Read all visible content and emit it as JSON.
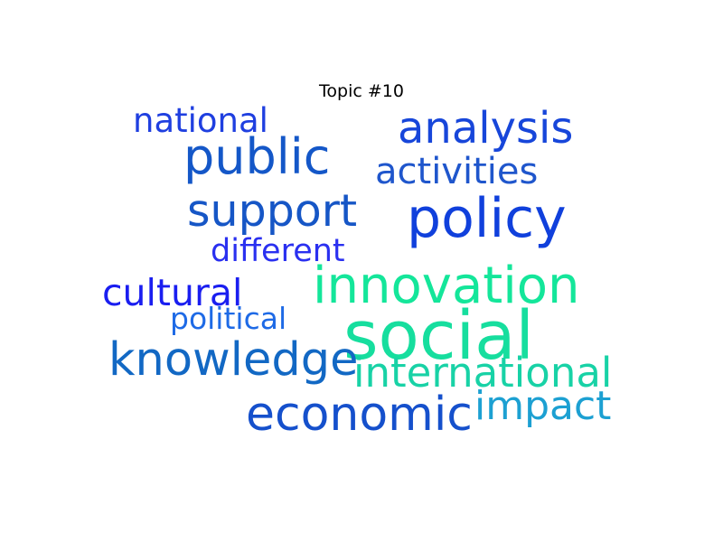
{
  "title": "Topic #10",
  "words": [
    {
      "text": "national",
      "weight": 0.5,
      "color": "#1f3fe0"
    },
    {
      "text": "analysis",
      "weight": 0.66,
      "color": "#1746da"
    },
    {
      "text": "public",
      "weight": 0.77,
      "color": "#1457c8"
    },
    {
      "text": "activities",
      "weight": 0.55,
      "color": "#1f56cc"
    },
    {
      "text": "support",
      "weight": 0.67,
      "color": "#1656c6"
    },
    {
      "text": "policy",
      "weight": 0.86,
      "color": "#1040dc"
    },
    {
      "text": "different",
      "weight": 0.49,
      "color": "#2a30f0"
    },
    {
      "text": "innovation",
      "weight": 0.8,
      "color": "#14e69a"
    },
    {
      "text": "cultural",
      "weight": 0.56,
      "color": "#1a1ef0"
    },
    {
      "text": "political",
      "weight": 0.48,
      "color": "#1e6ae6"
    },
    {
      "text": "social",
      "weight": 1.0,
      "color": "#16de9e"
    },
    {
      "text": "knowledge",
      "weight": 0.74,
      "color": "#1268c4"
    },
    {
      "text": "international",
      "weight": 0.62,
      "color": "#18d2a6"
    },
    {
      "text": "economic",
      "weight": 0.74,
      "color": "#1550cc"
    },
    {
      "text": "impact",
      "weight": 0.61,
      "color": "#1ca0d2"
    }
  ]
}
